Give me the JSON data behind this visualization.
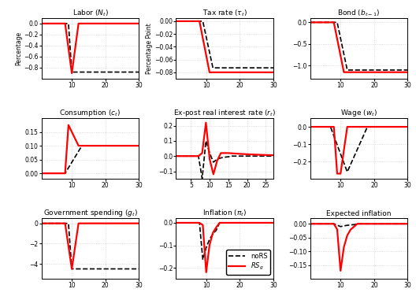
{
  "background_color": "#ffffff",
  "noRS_color": "black",
  "RS_color": "red",
  "grid_color": "#d0d0d0",
  "grid_style": ":",
  "panels": [
    {
      "title": "Labor ($N_t$)",
      "ylabel": "Percentage",
      "xlim": [
        1,
        30
      ],
      "xticks": [
        10,
        20,
        30
      ],
      "ylim": [
        -1.0,
        0.1
      ],
      "yticks": [
        0,
        -0.2,
        -0.4,
        -0.6,
        -0.8
      ],
      "noRS": {
        "type": "step_permanent",
        "t_on": 10,
        "val": -0.88
      },
      "RS": {
        "type": "spike_return",
        "t_spike": 9,
        "t_peak": 10,
        "peak": -0.9,
        "t_return": 12,
        "settle": 0.0
      }
    },
    {
      "title": "Tax rate ($\\tau_t$)",
      "ylabel": "Percentage Point",
      "xlim": [
        1,
        30
      ],
      "xticks": [
        10,
        20,
        30
      ],
      "ylim": [
        -0.09,
        0.005
      ],
      "yticks": [
        0,
        -0.02,
        -0.04,
        -0.06,
        -0.08
      ],
      "noRS": {
        "type": "ramp_settle",
        "t_start": 9,
        "t_end": 12,
        "val_settle": -0.073
      },
      "RS": {
        "type": "ramp_settle",
        "t_start": 8,
        "t_end": 11,
        "val_settle": -0.08
      }
    },
    {
      "title": "Bond ($b_{t-1}$)",
      "ylabel": "",
      "xlim": [
        1,
        30
      ],
      "xticks": [
        10,
        20,
        30
      ],
      "ylim": [
        -1.3,
        0.1
      ],
      "yticks": [
        0,
        -0.5,
        -1.0
      ],
      "noRS": {
        "type": "ramp_settle",
        "t_start": 9,
        "t_end": 12,
        "val_settle": -1.1
      },
      "RS": {
        "type": "ramp_settle",
        "t_start": 8,
        "t_end": 11,
        "val_settle": -1.15
      }
    },
    {
      "title": "Consumption ($c_t$)",
      "ylabel": "",
      "xlim": [
        1,
        30
      ],
      "xticks": [
        10,
        20,
        30
      ],
      "ylim": [
        -0.02,
        0.2
      ],
      "yticks": [
        0,
        0.05,
        0.1,
        0.15
      ],
      "noRS": {
        "type": "ramp_settle",
        "t_start": 8,
        "t_end": 13,
        "val_settle": 0.1
      },
      "RS": {
        "type": "spike_settle",
        "t_spike": 9,
        "peak": 0.175,
        "t_settle": 12,
        "settle": 0.1
      }
    },
    {
      "title": "Ex-post real interest rate ($r_t$)",
      "ylabel": "",
      "xlim": [
        1,
        27
      ],
      "xticks": [
        5,
        10,
        15,
        20,
        25
      ],
      "ylim": [
        -0.15,
        0.25
      ],
      "yticks": [
        0.2,
        0.1,
        0,
        -0.1
      ],
      "noRS": {
        "type": "real_rate_noRS"
      },
      "RS": {
        "type": "real_rate_RS"
      }
    },
    {
      "title": "Wage ($w_t$)",
      "ylabel": "",
      "xlim": [
        1,
        30
      ],
      "xticks": [
        10,
        20,
        30
      ],
      "ylim": [
        -0.3,
        0.05
      ],
      "yticks": [
        0,
        -0.1,
        -0.2
      ],
      "noRS": {
        "type": "wage_noRS"
      },
      "RS": {
        "type": "wage_RS"
      }
    },
    {
      "title": "Government spending ($g_t$)",
      "ylabel": "",
      "xlim": [
        1,
        30
      ],
      "xticks": [
        10,
        20,
        30
      ],
      "ylim": [
        -5.5,
        0.5
      ],
      "yticks": [
        0,
        -2,
        -4
      ],
      "noRS": {
        "type": "step_permanent",
        "t_on": 10,
        "val": -4.5
      },
      "RS": {
        "type": "spike_return",
        "t_spike": 9,
        "t_peak": 10,
        "peak": -4.5,
        "t_return": 12,
        "settle": 0.0
      }
    },
    {
      "title": "Inflation ($\\pi_t$)",
      "ylabel": "",
      "xlim": [
        1,
        30
      ],
      "xticks": [
        10,
        20,
        30
      ],
      "ylim": [
        -0.25,
        0.02
      ],
      "yticks": [
        0,
        -0.1,
        -0.2
      ],
      "noRS": {
        "type": "infl_noRS"
      },
      "RS": {
        "type": "infl_RS"
      }
    },
    {
      "title": "Expected inflation",
      "ylabel": "",
      "xlim": [
        1,
        30
      ],
      "xticks": [
        10,
        20,
        30
      ],
      "ylim": [
        -0.2,
        0.02
      ],
      "yticks": [
        0,
        -0.05,
        -0.1,
        -0.15
      ],
      "noRS": {
        "type": "expinfl_noRS"
      },
      "RS": {
        "type": "expinfl_RS"
      }
    }
  ]
}
